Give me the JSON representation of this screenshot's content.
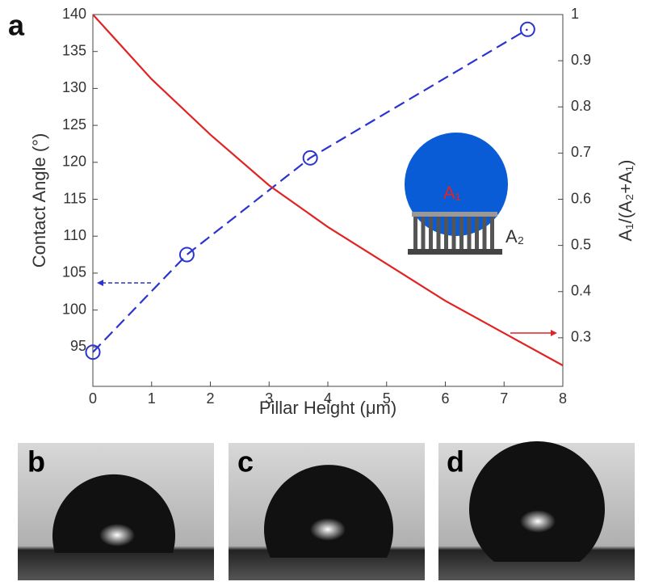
{
  "panel_labels": [
    "a",
    "b",
    "c",
    "d"
  ],
  "chart_data": {
    "type": "line",
    "x_label": "Pillar Height (μm)",
    "y_label": "Contact Angle (°)",
    "y2_label": "A₁/(A₂+A₁)",
    "inset_labels": [
      "A₁",
      "A₂"
    ],
    "xlim": [
      0,
      8
    ],
    "xticks": [
      0,
      1,
      2,
      3,
      4,
      5,
      6,
      7,
      8
    ],
    "ylim": [
      90,
      140
    ],
    "yticks": [
      95,
      100,
      105,
      110,
      115,
      120,
      125,
      130,
      135,
      140
    ],
    "y2lim": [
      0.2,
      1
    ],
    "y2ticks": [
      0.3,
      0.4,
      0.5,
      0.6,
      0.7,
      0.8,
      0.9,
      1
    ],
    "series": [
      {
        "color": "#2a35d0",
        "dashed": true,
        "markers": true,
        "x": [
          0,
          1.6,
          3.7,
          7.4
        ],
        "values": [
          94.3,
          107.5,
          120.6,
          138
        ]
      },
      {
        "color": "#e02424",
        "dashed": false,
        "markers": false,
        "axis": "y2",
        "x": [
          0,
          1,
          2,
          3,
          4,
          5,
          6,
          7,
          8
        ],
        "values": [
          1.0,
          0.86,
          0.74,
          0.63,
          0.54,
          0.46,
          0.38,
          0.31,
          0.24
        ]
      }
    ]
  }
}
